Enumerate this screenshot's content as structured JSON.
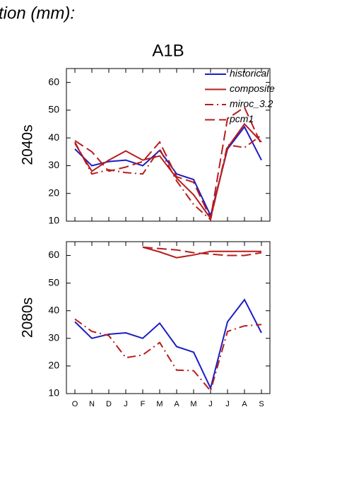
{
  "header": "tion (mm):",
  "chart_data": [
    {
      "type": "line",
      "title": "A1B",
      "ylabel": "2040s",
      "categories": [
        null,
        null,
        null,
        null,
        null,
        null,
        null,
        null,
        null,
        null,
        null,
        null
      ],
      "ylim": [
        10,
        65
      ],
      "yticks": [
        10,
        20,
        30,
        40,
        50,
        60
      ],
      "grid": false,
      "legend": "upper right",
      "series": [
        {
          "name": "historical",
          "color": "#1c1cc4",
          "dash": "solid",
          "values": [
            36,
            30,
            31.5,
            32,
            30,
            35.5,
            27,
            25,
            12,
            36,
            44,
            32
          ]
        },
        {
          "name": "composite",
          "color": "#b81c1c",
          "dash": "solid",
          "values": [
            38,
            28,
            32,
            35.3,
            32,
            33.5,
            25.5,
            19.5,
            11,
            36.5,
            45,
            38.5
          ]
        },
        {
          "name": "miroc_3.2",
          "color": "#b81c1c",
          "dash": "dashdot",
          "values": [
            38.5,
            27,
            28.5,
            27.5,
            27,
            36,
            24.5,
            16,
            10.5,
            37.5,
            36.5,
            41
          ]
        },
        {
          "name": "pcm1",
          "color": "#b81c1c",
          "dash": "dashed",
          "values": [
            39,
            35,
            28,
            29.5,
            31.5,
            38.5,
            26,
            24,
            11,
            47,
            51,
            37.5
          ]
        }
      ]
    },
    {
      "type": "line",
      "ylabel": "2080s",
      "categories": [
        "O",
        "N",
        "D",
        "J",
        "F",
        "M",
        "A",
        "M",
        "J",
        "J",
        "A",
        "S"
      ],
      "ylim": [
        10,
        65
      ],
      "yticks": [
        10,
        20,
        30,
        40,
        50,
        60
      ],
      "grid": false,
      "series": [
        {
          "name": "historical",
          "color": "#1c1cc4",
          "dash": "solid",
          "values": [
            36,
            30,
            31.5,
            32,
            30,
            35.5,
            27,
            25,
            12,
            36,
            44,
            32
          ]
        },
        {
          "name": "composite",
          "color": "#b81c1c",
          "dash": "solid",
          "values": [
            null,
            null,
            null,
            null,
            63,
            61.3,
            59.2,
            60.2,
            61.5,
            61.5,
            61.5,
            61.5
          ]
        },
        {
          "name": "miroc_3.2",
          "color": "#b81c1c",
          "dash": "dashdot",
          "values": [
            37,
            32.5,
            31,
            23,
            24,
            28.5,
            18.5,
            18.3,
            11,
            32.5,
            34.5,
            35
          ]
        },
        {
          "name": "pcm1",
          "color": "#b81c1c",
          "dash": "dashed",
          "values": [
            null,
            null,
            null,
            null,
            63,
            62.5,
            62,
            61,
            60.5,
            60,
            60,
            61
          ]
        }
      ]
    }
  ]
}
